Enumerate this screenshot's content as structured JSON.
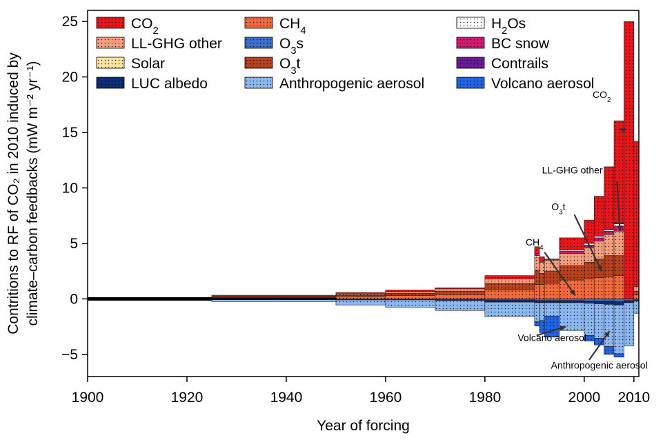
{
  "chart_data": {
    "type": "bar",
    "ylabel_line1": "Contritions to RF of CO₂ in 2010 induced by",
    "ylabel_line2": "climate–carbon feedbacks (mW m⁻² yr⁻¹)",
    "xlabel": "Year of forcing",
    "xlim": [
      1900,
      2011
    ],
    "ylim": [
      -7,
      26
    ],
    "x_ticks": [
      1900,
      1920,
      1940,
      1960,
      1980,
      2000,
      2010
    ],
    "x_tick_labels": [
      "1900",
      "1920",
      "1940",
      "1960",
      "1980",
      "2000",
      "2010"
    ],
    "y_ticks": [
      -5,
      0,
      5,
      10,
      15,
      20,
      25
    ],
    "y_tick_labels": [
      "−5",
      "0",
      "5",
      "10",
      "15",
      "20",
      "25"
    ],
    "legend": {
      "placement": "top",
      "entries": [
        {
          "key": "co2",
          "text": "CO",
          "sub": "2",
          "after": ""
        },
        {
          "key": "llghg",
          "text": "LL-GHG other",
          "sub": "",
          "after": ""
        },
        {
          "key": "solar",
          "text": "Solar",
          "sub": "",
          "after": ""
        },
        {
          "key": "luc",
          "text": "LUC albedo",
          "sub": "",
          "after": ""
        },
        {
          "key": "ch4",
          "text": "CH",
          "sub": "4",
          "after": ""
        },
        {
          "key": "o3s",
          "text": "O",
          "sub": "3",
          "after": "s"
        },
        {
          "key": "o3t",
          "text": "O",
          "sub": "3",
          "after": "t"
        },
        {
          "key": "aer",
          "text": "Anthropogenic aerosol",
          "sub": "",
          "after": ""
        },
        {
          "key": "h2os",
          "text": "H",
          "sub": "2",
          "after": "Os"
        },
        {
          "key": "bc",
          "text": "BC snow",
          "sub": "",
          "after": ""
        },
        {
          "key": "contrails",
          "text": "Contrails",
          "sub": "",
          "after": ""
        },
        {
          "key": "volc",
          "text": "Volcano aerosol",
          "sub": "",
          "after": ""
        }
      ]
    },
    "components": {
      "co2": {
        "color": "#e8151a",
        "dot": "#000000"
      },
      "llghg": {
        "color": "#f4a07e",
        "dot": "#000000"
      },
      "solar": {
        "color": "#fde3a0",
        "dot": "#000000"
      },
      "luc": {
        "color": "#0b2d7a",
        "dot": "#000000"
      },
      "ch4": {
        "color": "#f26a3a",
        "dot": "#000000"
      },
      "o3s": {
        "color": "#3b6fc9",
        "dot": "#000000"
      },
      "o3t": {
        "color": "#b8401c",
        "dot": "#000000"
      },
      "aer": {
        "color": "#8cb8f2",
        "dot": "#000000"
      },
      "h2os": {
        "color": "#ffffff",
        "dot": "#000000"
      },
      "bc": {
        "color": "#d11a72",
        "dot": "#000000"
      },
      "contrails": {
        "color": "#6a1a9a",
        "dot": "#000000"
      },
      "volc": {
        "color": "#1e64e6",
        "dot": "#000000"
      }
    },
    "positive_order": [
      "ch4",
      "o3t",
      "llghg",
      "solar",
      "bc",
      "h2os",
      "contrails",
      "co2"
    ],
    "negative_order": [
      "o3s",
      "luc",
      "aer",
      "volc"
    ],
    "bins": [
      {
        "x0": 1900,
        "x1": 1925,
        "ch4": 0.02,
        "o3t": 0.01,
        "llghg": 0.02,
        "co2": 0.03,
        "aer": -0.05,
        "luc": -0.02
      },
      {
        "x0": 1925,
        "x1": 1950,
        "ch4": 0.1,
        "o3t": 0.06,
        "llghg": 0.05,
        "co2": 0.12,
        "aer": -0.2,
        "luc": -0.05
      },
      {
        "x0": 1950,
        "x1": 1960,
        "ch4": 0.2,
        "o3t": 0.12,
        "llghg": 0.1,
        "co2": 0.15,
        "aer": -0.45,
        "luc": -0.1
      },
      {
        "x0": 1960,
        "x1": 1970,
        "ch4": 0.3,
        "o3t": 0.2,
        "llghg": 0.15,
        "co2": 0.15,
        "aer": -0.65,
        "luc": -0.1
      },
      {
        "x0": 1970,
        "x1": 1980,
        "ch4": 0.4,
        "o3t": 0.3,
        "llghg": 0.2,
        "co2": 0.1,
        "aer": -0.9,
        "luc": -0.15
      },
      {
        "x0": 1980,
        "x1": 1990,
        "ch4": 0.8,
        "o3t": 0.6,
        "llghg": 0.4,
        "co2": 0.3,
        "aer": -1.3,
        "luc": -0.2,
        "o3s": -0.1
      },
      {
        "x0": 1990,
        "x1": 1991,
        "ch4": 1.3,
        "o3t": 1.3,
        "llghg": 1.1,
        "solar": 0.2,
        "bc": 0.2,
        "co2": 0.6,
        "aer": -1.7,
        "luc": -0.2,
        "o3s": -0.15,
        "volc": -0.4
      },
      {
        "x0": 1991,
        "x1": 1992,
        "ch4": 1.3,
        "o3t": 1.0,
        "llghg": 1.0,
        "co2": 0.5,
        "aer": -1.6,
        "luc": -0.2,
        "o3s": -0.15,
        "volc": -1.1
      },
      {
        "x0": 1992,
        "x1": 1995,
        "ch4": 1.4,
        "o3t": 1.1,
        "llghg": 1.0,
        "co2": 0.1,
        "aer": -1.2,
        "luc": -0.2,
        "o3s": -0.15,
        "volc": -1.9
      },
      {
        "x0": 1995,
        "x1": 2000,
        "ch4": 1.7,
        "o3t": 1.3,
        "llghg": 1.1,
        "bc": 0.2,
        "h2os": 0.1,
        "co2": 1.1,
        "aer": -2.5,
        "luc": -0.2,
        "o3s": -0.15
      },
      {
        "x0": 2000,
        "x1": 2002,
        "ch4": 1.8,
        "o3t": 1.5,
        "llghg": 1.3,
        "bc": 0.25,
        "h2os": 0.15,
        "co2": 2.1,
        "aer": -2.9,
        "luc": -0.2,
        "o3s": -0.2,
        "volc": -0.5
      },
      {
        "x0": 2002,
        "x1": 2004,
        "ch4": 1.9,
        "o3t": 1.7,
        "llghg": 1.6,
        "bc": 0.3,
        "h2os": 0.15,
        "co2": 3.6,
        "aer": -3.1,
        "luc": -0.25,
        "o3s": -0.2,
        "volc": -0.6
      },
      {
        "x0": 2004,
        "x1": 2006,
        "ch4": 2.0,
        "o3t": 1.9,
        "llghg": 1.9,
        "bc": 0.3,
        "h2os": 0.15,
        "contrails": 0.05,
        "co2": 5.6,
        "aer": -3.8,
        "luc": -0.3,
        "o3s": -0.2,
        "volc": -0.7
      },
      {
        "x0": 2006,
        "x1": 2008,
        "ch4": 2.1,
        "o3t": 1.8,
        "llghg": 2.2,
        "bc": 0.45,
        "h2os": 0.2,
        "contrails": 0.1,
        "co2": 9.2,
        "aer": -4.4,
        "luc": -0.3,
        "o3s": -0.25,
        "volc": -0.3
      },
      {
        "x0": 2008,
        "x1": 2010,
        "co2": 25.0,
        "aer": -3.9,
        "luc": -0.2,
        "o3s": -0.15
      },
      {
        "x0": 2010,
        "x1": 2011,
        "ch4": 0.4,
        "o3t": 0.3,
        "llghg": 0.4,
        "co2": 13.1,
        "aer": -1.1,
        "luc": -0.1,
        "o3s": -0.1
      }
    ],
    "annotations": [
      {
        "key": "co2",
        "text": "CO",
        "sub": "2",
        "after": "",
        "tx": 2001.7,
        "ty": 18.1,
        "ax": 2008.2,
        "ay": 15.2,
        "bx": 2007.1,
        "by": 15.3
      },
      {
        "key": "llghg",
        "text": "LL-GHG other",
        "sub": "",
        "after": "",
        "tx": 1991.5,
        "ty": 11.3,
        "ax": 2006.6,
        "ay": 10.6,
        "bx": 2007.2,
        "by": 6.1
      },
      {
        "key": "o3t",
        "text": "O",
        "sub": "3",
        "after": "t",
        "tx": 1993.4,
        "ty": 8.0,
        "ax": 1998.0,
        "ay": 7.6,
        "bx": 2003.5,
        "by": 2.5
      },
      {
        "key": "ch4",
        "text": "CH",
        "sub": "4",
        "after": "",
        "tx": 1988.2,
        "ty": 4.8,
        "ax": 1992.0,
        "ay": 4.2,
        "bx": 1998.2,
        "by": 0.3
      },
      {
        "key": "volc",
        "text": "Volcano aerosol",
        "sub": "",
        "after": "",
        "tx": 1986.6,
        "ty": -3.8,
        "ax": 1990.4,
        "ay": -3.3,
        "bx": 1996.3,
        "by": -2.5
      },
      {
        "key": "aer",
        "text": "Anthropogenic aerosol",
        "sub": "",
        "after": "",
        "tx": 1993.3,
        "ty": -6.3,
        "ax": 2001.0,
        "ay": -5.5,
        "bx": 2005.1,
        "by": -2.9
      }
    ]
  }
}
